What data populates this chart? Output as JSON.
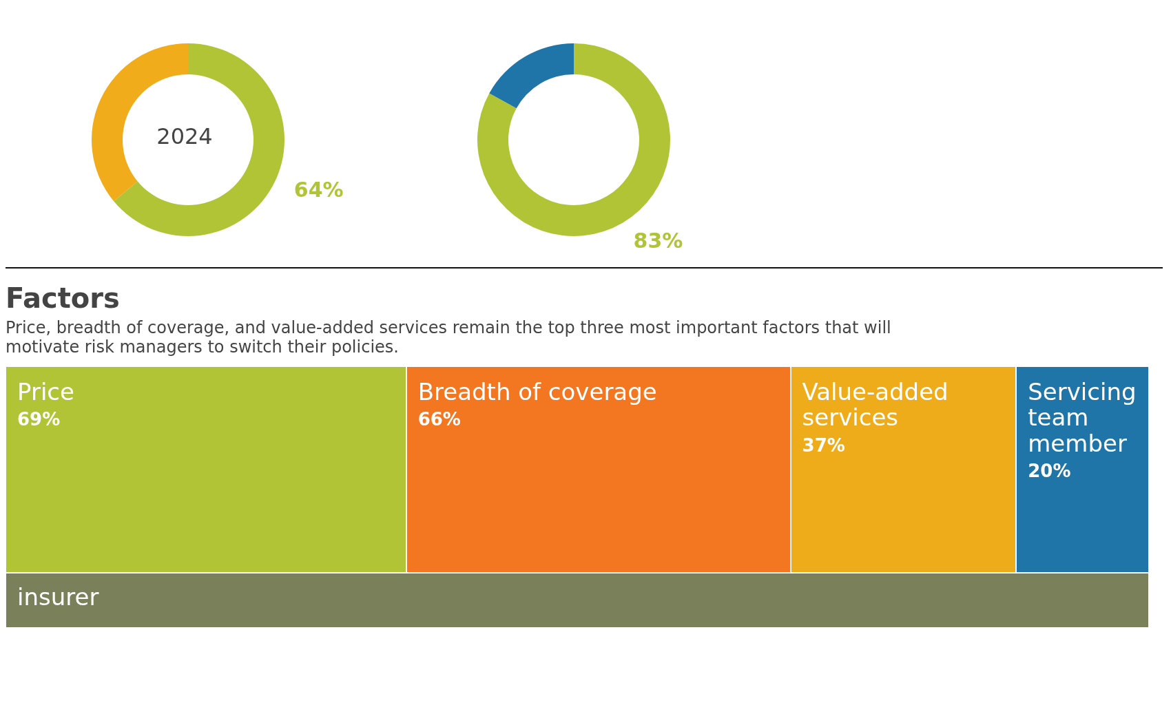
{
  "chart_data": [
    {
      "type": "donut",
      "categories": [
        null,
        null
      ],
      "values": [
        64,
        36
      ],
      "colors": [
        "#b0c436",
        "#f0ac1a"
      ],
      "value_labels": [
        "64%",
        null
      ],
      "annotations": [
        "2024"
      ]
    },
    {
      "type": "donut",
      "categories": [
        null,
        null
      ],
      "values": [
        83,
        17
      ],
      "colors": [
        "#b0c436",
        "#2075a8"
      ],
      "value_labels": [
        "83%",
        null
      ]
    },
    {
      "type": "other",
      "title": "Factors",
      "subtitle": "Price, breadth of coverage, and value-added services remain the top three most important factors that will motivate risk managers to switch their policies.",
      "categories": [
        "Price",
        "Breadth of coverage",
        "Value-added services",
        "Servicing team member",
        "insurer"
      ],
      "values": [
        69,
        66,
        37,
        20,
        null
      ],
      "colors": [
        "#b0c436",
        "#f37721",
        "#efac1a",
        "#2075a8",
        "#7a815a"
      ],
      "value_labels": [
        "69%",
        "66%",
        "37%",
        "20%",
        null
      ]
    }
  ]
}
